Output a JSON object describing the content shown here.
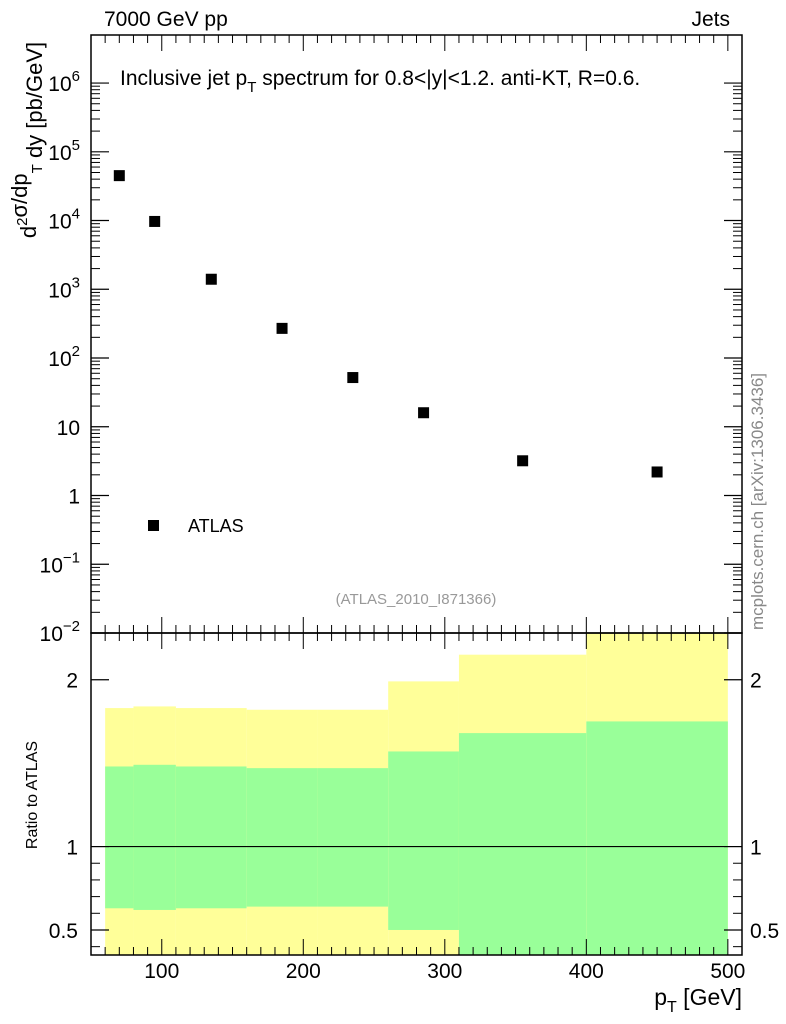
{
  "header": {
    "left": "7000 GeV pp",
    "right": "Jets"
  },
  "side_label": "mcplots.cern.ch [arXiv:1306.3436]",
  "chart_data": [
    {
      "type": "scatter",
      "title_main": "Inclusive jet p",
      "title_sub": "T",
      "title_rest": " spectrum for 0.8<|y|<1.2.  anti-KT, R=0.6.",
      "watermark": "(ATLAS_2010_I871366)",
      "ylabel": "d²σ/dp_T dy [pb/GeV]",
      "yscale": "log",
      "ylim": [
        0.01,
        5000000
      ],
      "xlim": [
        50,
        510
      ],
      "y_tick_labels": [
        "10^6",
        "10^5",
        "10^4",
        "10^3",
        "10^2",
        "10",
        "1",
        "10^-1",
        "10^-2"
      ],
      "series": [
        {
          "name": "ATLAS",
          "x": [
            70,
            95,
            135,
            185,
            235,
            285,
            355,
            450
          ],
          "y": [
            45000,
            9700,
            1400,
            270,
            52,
            16,
            3.2,
            2.2
          ]
        }
      ],
      "legend_placement": "bottom-left",
      "grid": false
    },
    {
      "type": "area",
      "ylabel": "Ratio to ATLAS",
      "xlabel": "p",
      "xlabel_sub": "T",
      "xlabel_unit": " [GeV]",
      "ylim": [
        0.35,
        2.28
      ],
      "xlim": [
        50,
        510
      ],
      "x_ticks": [
        "100",
        "200",
        "300",
        "400",
        "500"
      ],
      "y_ticks": [
        "0.5",
        "1",
        "2"
      ],
      "reference_line": 1,
      "bins": [
        {
          "lo": 60,
          "hi": 80,
          "inner": [
            0.63,
            1.48
          ],
          "outer": [
            0.35,
            1.83
          ]
        },
        {
          "lo": 80,
          "hi": 110,
          "inner": [
            0.62,
            1.49
          ],
          "outer": [
            0.35,
            1.84
          ]
        },
        {
          "lo": 110,
          "hi": 160,
          "inner": [
            0.63,
            1.48
          ],
          "outer": [
            0.35,
            1.83
          ]
        },
        {
          "lo": 160,
          "hi": 210,
          "inner": [
            0.64,
            1.47
          ],
          "outer": [
            0.35,
            1.82
          ]
        },
        {
          "lo": 210,
          "hi": 260,
          "inner": [
            0.64,
            1.47
          ],
          "outer": [
            0.35,
            1.82
          ]
        },
        {
          "lo": 260,
          "hi": 310,
          "inner": [
            0.5,
            1.57
          ],
          "outer": [
            0.35,
            1.99
          ]
        },
        {
          "lo": 310,
          "hi": 400,
          "inner": [
            0.35,
            1.68
          ],
          "outer": [
            0.35,
            2.15
          ]
        },
        {
          "lo": 400,
          "hi": 500,
          "inner": [
            0.35,
            1.75
          ],
          "outer": [
            0.35,
            2.28
          ]
        }
      ],
      "colors": {
        "inner": "#99ff99",
        "outer": "#ffff99"
      }
    }
  ]
}
